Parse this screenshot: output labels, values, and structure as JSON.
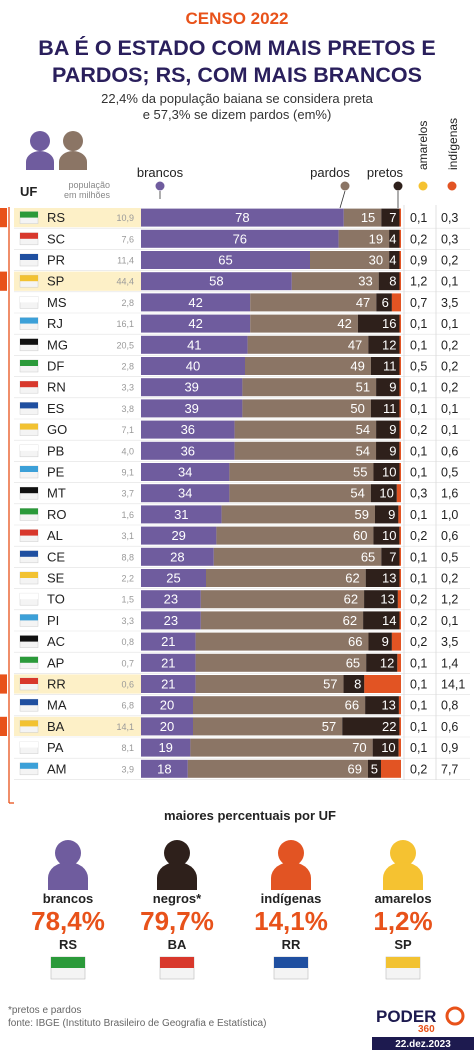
{
  "header": {
    "kicker": "CENSO 2022",
    "title_line1": "BA É O ESTADO COM MAIS PRETOS E",
    "title_line2": "PARDOS; RS, COM MAIS BRANCOS",
    "subtitle_line1": "22,4% da população baiana se considera preta",
    "subtitle_line2": "e 57,3% se dizem pardos (em%)"
  },
  "colors": {
    "brancos": "#6f5c9e",
    "pardos": "#8b7565",
    "pretos": "#2e201b",
    "amarelos": "#f5c231",
    "indigenas": "#e25423",
    "highlight": "#fdf0c7",
    "accent": "#e8521a",
    "title": "#2a1f5c"
  },
  "chart_data": {
    "type": "bar",
    "stacked": true,
    "orientation": "horizontal",
    "unit": "%",
    "column_headers": {
      "uf": "UF",
      "population_line1": "população",
      "population_line2": "em milhões",
      "brancos": "brancos",
      "pardos": "pardos",
      "pretos": "pretos",
      "amarelos": "amarelos",
      "indigenas": "indígenas"
    },
    "categories": [
      "RS",
      "SC",
      "PR",
      "SP",
      "MS",
      "RJ",
      "MG",
      "DF",
      "RN",
      "ES",
      "GO",
      "PB",
      "PE",
      "MT",
      "RO",
      "AL",
      "CE",
      "SE",
      "TO",
      "PI",
      "AC",
      "AP",
      "RR",
      "MA",
      "BA",
      "PA",
      "AM"
    ],
    "population": [
      "10,9",
      "7,6",
      "11,4",
      "44,4",
      "2,8",
      "16,1",
      "20,5",
      "2,8",
      "3,3",
      "3,8",
      "7,1",
      "4,0",
      "9,1",
      "3,7",
      "1,6",
      "3,1",
      "8,8",
      "2,2",
      "1,5",
      "3,3",
      "0,8",
      "0,7",
      "0,6",
      "6,8",
      "14,1",
      "8,1",
      "3,9"
    ],
    "highlighted": [
      "RS",
      "SP",
      "RR",
      "BA"
    ],
    "series": [
      {
        "name": "brancos",
        "values": [
          78,
          76,
          65,
          58,
          42,
          42,
          41,
          40,
          39,
          39,
          36,
          36,
          34,
          34,
          31,
          29,
          28,
          25,
          23,
          23,
          21,
          21,
          21,
          20,
          20,
          19,
          18
        ]
      },
      {
        "name": "pardos",
        "values": [
          15,
          19,
          30,
          33,
          47,
          42,
          47,
          49,
          51,
          50,
          54,
          54,
          55,
          54,
          59,
          60,
          65,
          62,
          62,
          62,
          66,
          65,
          57,
          66,
          57,
          70,
          69
        ]
      },
      {
        "name": "pretos",
        "values": [
          7,
          4,
          4,
          8,
          6,
          16,
          12,
          11,
          9,
          11,
          9,
          9,
          10,
          10,
          9,
          10,
          7,
          13,
          13,
          14,
          9,
          12,
          8,
          13,
          22,
          10,
          5
        ]
      },
      {
        "name": "amarelos",
        "values": [
          0.1,
          0.2,
          0.9,
          1.2,
          0.7,
          0.1,
          0.1,
          0.5,
          0.1,
          0.1,
          0.2,
          0.1,
          0.1,
          0.3,
          0.1,
          0.2,
          0.1,
          0.1,
          0.2,
          0.2,
          0.2,
          0.1,
          0.1,
          0.1,
          0.1,
          0.1,
          0.2
        ]
      },
      {
        "name": "indígenas",
        "values": [
          0.3,
          0.3,
          0.2,
          0.1,
          3.5,
          0.1,
          0.2,
          0.2,
          0.2,
          0.1,
          0.1,
          0.6,
          0.5,
          1.6,
          1.0,
          0.6,
          0.5,
          0.2,
          1.2,
          0.1,
          3.5,
          1.4,
          14.1,
          0.8,
          0.6,
          0.9,
          7.7
        ]
      }
    ],
    "xlim": [
      0,
      100
    ]
  },
  "summary": {
    "title": "maiores percentuais por UF",
    "items": [
      {
        "label": "brancos",
        "value": "78,4%",
        "uf": "RS",
        "color": "#6f5c9e"
      },
      {
        "label": "negros*",
        "value": "79,7%",
        "uf": "BA",
        "color": "#2e201b"
      },
      {
        "label": "indígenas",
        "value": "14,1%",
        "uf": "RR",
        "color": "#e25423"
      },
      {
        "label": "amarelos",
        "value": "1,2%",
        "uf": "SP",
        "color": "#f5c231"
      }
    ]
  },
  "footer": {
    "note": "*pretos e pardos",
    "source": "fonte: IBGE (Instituto Brasileiro de Geografia e Estatística)",
    "brand": "PODER",
    "brand_sub": "360",
    "date": "22.dez.2023"
  }
}
